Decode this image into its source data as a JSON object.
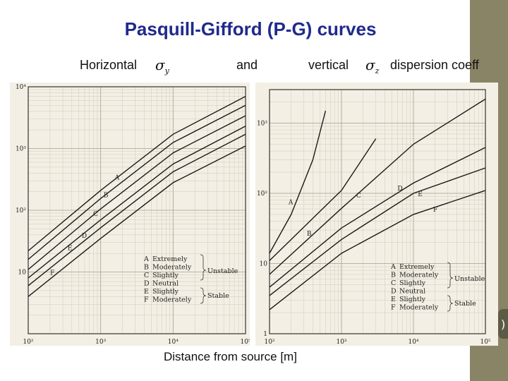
{
  "slide": {
    "title": "Pasquill-Gifford (P-G)  curves",
    "sub_horizontal": "Horizontal",
    "sigma_y_symbol": "σ",
    "sigma_y_sub": "y",
    "sub_and": "and",
    "sub_vertical": "vertical",
    "sigma_z_symbol": "σ",
    "sigma_z_sub": "z",
    "sub_tail": "dispersion coeff",
    "xaxis_label": "Distance from source [m]"
  },
  "chart_data": [
    {
      "type": "line",
      "name": "sigma_y",
      "xscale": "log",
      "yscale": "log",
      "xlim": [
        100,
        100000
      ],
      "ylim": [
        1,
        10000
      ],
      "xticks": [
        "10²",
        "10³",
        "10⁴",
        "10⁵"
      ],
      "yticks": [
        "10",
        "10²",
        "10³",
        "10⁴"
      ],
      "series": [
        {
          "name": "A",
          "x": [
            100,
            1000,
            10000,
            100000
          ],
          "values": [
            22,
            210,
            1700,
            7000
          ]
        },
        {
          "name": "B",
          "x": [
            100,
            1000,
            10000,
            100000
          ],
          "values": [
            16,
            155,
            1250,
            5000
          ]
        },
        {
          "name": "C",
          "x": [
            100,
            1000,
            10000,
            100000
          ],
          "values": [
            11,
            105,
            850,
            3400
          ]
        },
        {
          "name": "D",
          "x": [
            100,
            1000,
            10000,
            100000
          ],
          "values": [
            8,
            70,
            560,
            2300
          ]
        },
        {
          "name": "E",
          "x": [
            100,
            1000,
            10000,
            100000
          ],
          "values": [
            6,
            52,
            420,
            1700
          ]
        },
        {
          "name": "F",
          "x": [
            100,
            1000,
            10000,
            100000
          ],
          "values": [
            4,
            35,
            280,
            1100
          ]
        }
      ],
      "legend": [
        {
          "letter": "A",
          "text": "Extremely"
        },
        {
          "letter": "B",
          "text": "Moderately"
        },
        {
          "letter": "C",
          "text": "Slightly"
        },
        {
          "letter": "D",
          "text": "Neutral"
        },
        {
          "letter": "E",
          "text": "Slightly"
        },
        {
          "letter": "F",
          "text": "Moderately"
        }
      ],
      "legend_groups": [
        "Unstable",
        "Stable"
      ],
      "legend_position": "bottom-right"
    },
    {
      "type": "line",
      "name": "sigma_z",
      "xscale": "log",
      "yscale": "log",
      "xlim": [
        100,
        100000
      ],
      "ylim": [
        1,
        3000
      ],
      "xticks": [
        "10²",
        "10³",
        "10⁴",
        "10⁵"
      ],
      "yticks": [
        "1",
        "10",
        "10²",
        "10³"
      ],
      "series": [
        {
          "name": "A",
          "x": [
            100,
            200,
            400,
            600
          ],
          "values": [
            14,
            50,
            300,
            1500
          ]
        },
        {
          "name": "B",
          "x": [
            100,
            500,
            1000,
            3000
          ],
          "values": [
            11,
            55,
            110,
            600
          ]
        },
        {
          "name": "C",
          "x": [
            100,
            1000,
            10000,
            100000
          ],
          "values": [
            7,
            61,
            500,
            2200
          ]
        },
        {
          "name": "D",
          "x": [
            100,
            1000,
            10000,
            100000
          ],
          "values": [
            4.6,
            32,
            140,
            450
          ]
        },
        {
          "name": "E",
          "x": [
            100,
            1000,
            10000,
            100000
          ],
          "values": [
            3.5,
            22,
            100,
            230
          ]
        },
        {
          "name": "F",
          "x": [
            100,
            1000,
            10000,
            100000
          ],
          "values": [
            2.2,
            14,
            50,
            110
          ]
        }
      ],
      "legend": [
        {
          "letter": "A",
          "text": "Extremely"
        },
        {
          "letter": "B",
          "text": "Moderately"
        },
        {
          "letter": "C",
          "text": "Slightly"
        },
        {
          "letter": "D",
          "text": "Neutral"
        },
        {
          "letter": "E",
          "text": "Slightly"
        },
        {
          "letter": "F",
          "text": "Moderately"
        }
      ],
      "legend_groups": [
        "Unstable",
        "Stable"
      ],
      "legend_position": "bottom-right"
    }
  ]
}
